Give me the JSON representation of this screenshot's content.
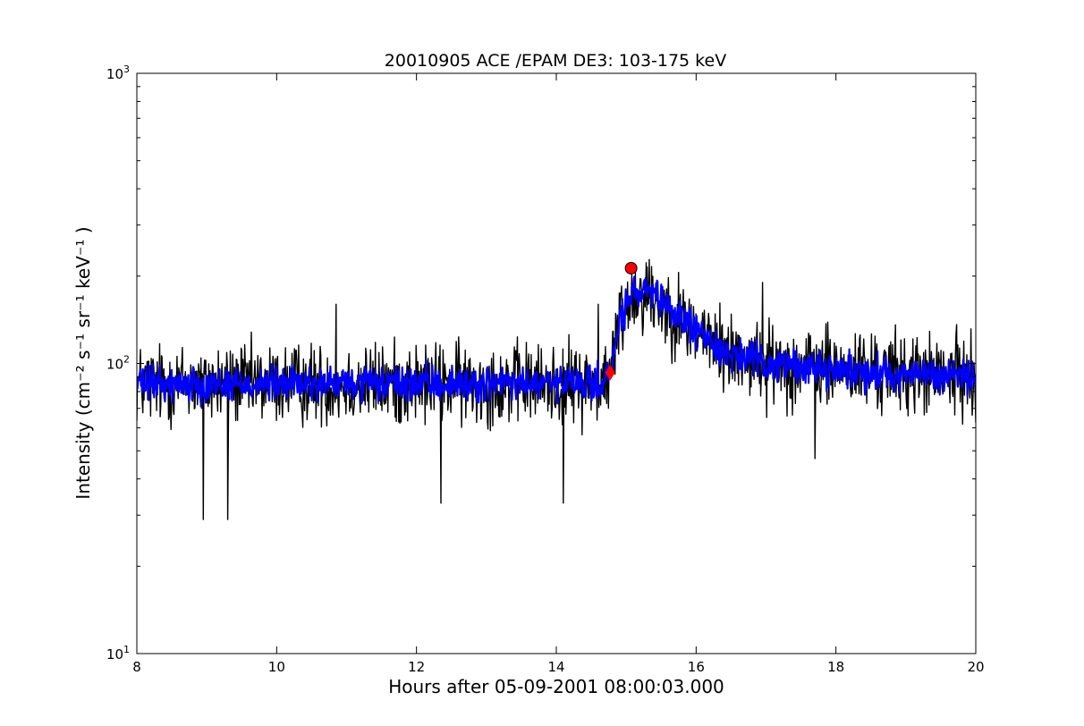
{
  "chart_data": {
    "type": "line",
    "title": "20010905 ACE /EPAM DE3: 103-175 keV",
    "xlabel": "Hours after 05-09-2001 08:00:03.000",
    "ylabel": "Intensity (cm⁻² s⁻¹ sr⁻¹ keV⁻¹ )",
    "xlim": [
      8,
      20
    ],
    "ylim": [
      10,
      1000
    ],
    "yscale": "log",
    "grid": false,
    "x_ticks": [
      8,
      10,
      12,
      14,
      16,
      18,
      20
    ],
    "x_tick_labels": [
      "8",
      "10",
      "12",
      "14",
      "16",
      "18",
      "20"
    ],
    "y_ticks": [
      10,
      100,
      1000
    ],
    "y_tick_labels": [
      {
        "base": "10",
        "exp": "1"
      },
      {
        "base": "10",
        "exp": "2"
      },
      {
        "base": "10",
        "exp": "3"
      }
    ],
    "series": [
      {
        "color": "#000000",
        "baseline": [
          [
            8.0,
            85
          ],
          [
            14.6,
            85
          ],
          [
            14.78,
            92
          ],
          [
            14.9,
            140
          ],
          [
            15.1,
            175
          ],
          [
            15.3,
            175
          ],
          [
            15.6,
            155
          ],
          [
            16.0,
            130
          ],
          [
            16.4,
            110
          ],
          [
            17.0,
            100
          ],
          [
            18.0,
            95
          ],
          [
            19.0,
            92
          ],
          [
            20.0,
            90
          ]
        ],
        "noise_log10_spread": 0.13,
        "notable_points": [
          [
            8.95,
            29
          ],
          [
            9.3,
            29
          ],
          [
            10.85,
            160
          ],
          [
            12.35,
            33
          ],
          [
            14.1,
            33
          ],
          [
            14.6,
            160
          ],
          [
            15.3,
            215
          ],
          [
            16.95,
            190
          ],
          [
            17.7,
            47
          ]
        ]
      },
      {
        "color": "#0000ff",
        "baseline": [
          [
            8.0,
            85
          ],
          [
            14.6,
            85
          ],
          [
            14.78,
            92
          ],
          [
            14.9,
            140
          ],
          [
            15.1,
            175
          ],
          [
            15.3,
            175
          ],
          [
            15.6,
            155
          ],
          [
            16.0,
            130
          ],
          [
            16.4,
            110
          ],
          [
            17.0,
            100
          ],
          [
            18.0,
            95
          ],
          [
            19.0,
            92
          ],
          [
            20.0,
            90
          ]
        ],
        "noise_log10_spread": 0.055
      }
    ],
    "markers": [
      {
        "shape": "diamond",
        "x": 14.77,
        "y": 93,
        "color": "#ff0000"
      },
      {
        "shape": "circle",
        "x": 15.07,
        "y": 213,
        "color": "#ff0000"
      }
    ]
  }
}
